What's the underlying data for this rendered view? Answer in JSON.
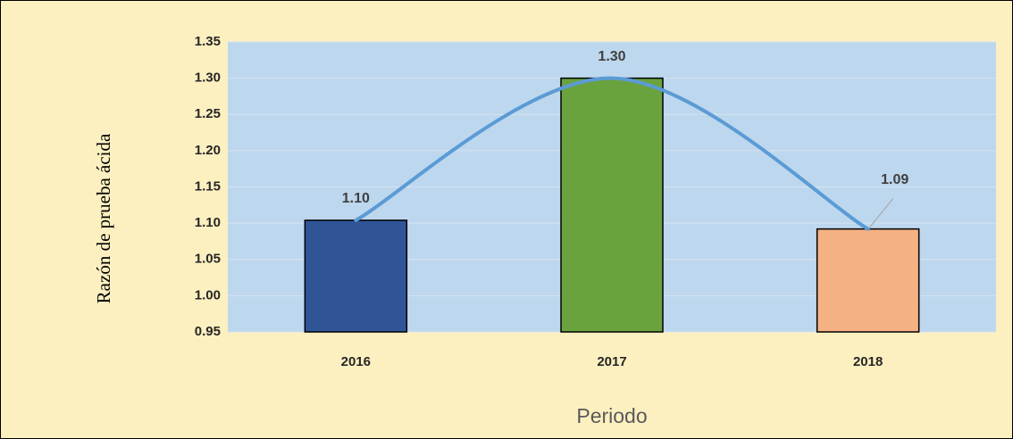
{
  "chart_data": {
    "type": "bar",
    "categories": [
      "2016",
      "2017",
      "2018"
    ],
    "values": [
      1.104,
      1.3,
      1.092
    ],
    "value_labels": [
      "1.10",
      "1.30",
      "1.09"
    ],
    "colors": [
      "#2f5597",
      "#6aa23e",
      "#f4b183"
    ],
    "line_color": "#5b9bd5",
    "smooth_line": true,
    "ylabel": "Razón de prueba ácida",
    "xlabel": "Periodo",
    "ylim": [
      0.95,
      1.35
    ],
    "yticks": [
      0.95,
      {
        "value": 1.0,
        "label": "1.00"
      },
      1.05,
      {
        "value": 1.1,
        "label": "1.10"
      },
      1.15,
      {
        "value": 1.2,
        "label": "1.20"
      },
      1.25,
      {
        "value": 1.3,
        "label": "1.30"
      },
      1.35
    ],
    "grid": true
  }
}
